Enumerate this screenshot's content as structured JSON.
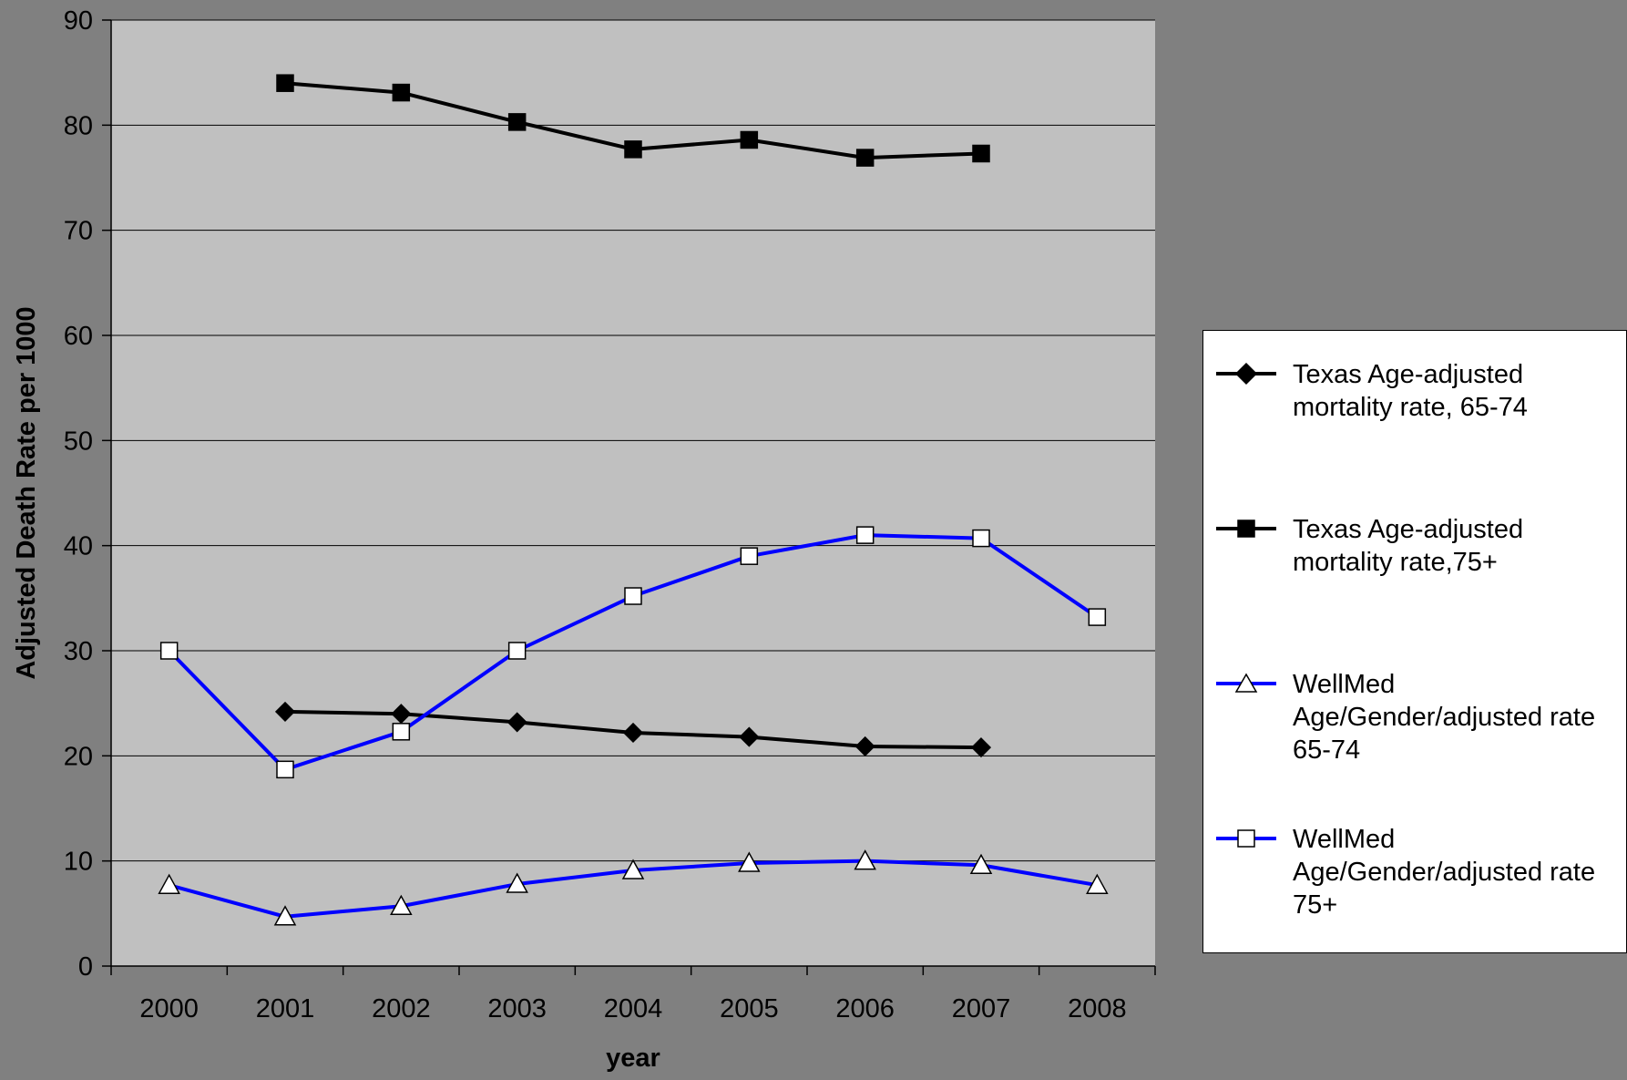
{
  "chart_data": {
    "type": "line",
    "title": "",
    "xlabel": "year",
    "ylabel": "Adjusted Death Rate per 1000",
    "categories": [
      "2000",
      "2001",
      "2002",
      "2003",
      "2004",
      "2005",
      "2006",
      "2007",
      "2008"
    ],
    "ylim": [
      0,
      90
    ],
    "yticks": [
      "0",
      "10",
      "20",
      "30",
      "40",
      "50",
      "60",
      "70",
      "80",
      "90"
    ],
    "grid": "horizontal",
    "legend_position": "right",
    "plot_background": "#c0c0c0",
    "page_background": "#808080",
    "series": [
      {
        "name": "Texas Age-adjusted mortality rate, 65-74",
        "label_lines": [
          "Texas Age-adjusted",
          "mortality rate, 65-74"
        ],
        "values": [
          null,
          24.2,
          24.0,
          23.2,
          22.2,
          21.8,
          20.9,
          20.8,
          null
        ],
        "color": "#000000",
        "marker": "diamond",
        "marker_fill": "#000000"
      },
      {
        "name": "Texas Age-adjusted mortality rate,75+",
        "label_lines": [
          "Texas Age-adjusted",
          "mortality rate,75+"
        ],
        "values": [
          null,
          84.0,
          83.1,
          80.3,
          77.7,
          78.6,
          76.9,
          77.3,
          null
        ],
        "color": "#000000",
        "marker": "square",
        "marker_fill": "#000000"
      },
      {
        "name": "WellMed Age/Gender/adjusted rate 65-74",
        "label_lines": [
          "WellMed",
          "Age/Gender/adjusted rate",
          "65-74"
        ],
        "values": [
          7.7,
          4.7,
          5.7,
          7.8,
          9.1,
          9.8,
          10.0,
          9.6,
          7.7
        ],
        "color": "#0000ff",
        "marker": "triangle",
        "marker_fill": "#ffffff"
      },
      {
        "name": "WellMed Age/Gender/adjusted rate 75+",
        "label_lines": [
          "WellMed",
          "Age/Gender/adjusted rate",
          "75+"
        ],
        "values": [
          30.0,
          18.7,
          22.3,
          30.0,
          35.2,
          39.0,
          41.0,
          40.7,
          33.2
        ],
        "color": "#0000ff",
        "marker": "square",
        "marker_fill": "#ffffff"
      }
    ]
  }
}
